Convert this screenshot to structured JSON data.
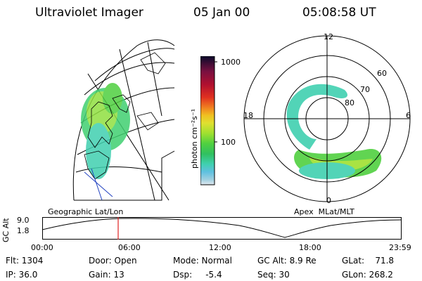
{
  "header": {
    "title": "Ultraviolet Imager",
    "date": "05 Jan 00",
    "time": "05:08:58 UT"
  },
  "colorbar": {
    "unit_label": "photon cm⁻²s⁻¹",
    "tick_top": "1000",
    "tick_mid": "100",
    "colors": [
      "#0a0a2a",
      "#7a1040",
      "#b01030",
      "#e03020",
      "#f08020",
      "#f0c020",
      "#e0e030",
      "#a0e030",
      "#50d040",
      "#30c060",
      "#40d0b0",
      "#60c0e0",
      "#a0d0e0",
      "#e0e8f0"
    ]
  },
  "left_panel": {
    "caption": "Geographic Lat/Lon"
  },
  "right_panel": {
    "caption": "Apex  MLat/MLT",
    "mlt_labels": {
      "top": "12",
      "bottom": "0",
      "left": "18",
      "right": "6"
    },
    "lat_labels": [
      "60",
      "70",
      "80"
    ]
  },
  "altitude_plot": {
    "y_label": "GC Alt",
    "y_ticks": [
      "9.0",
      "1.8"
    ],
    "x_ticks": [
      "00:00",
      "06:00",
      "12:00",
      "18:00",
      "23:59"
    ],
    "cursor_color": "#e02020"
  },
  "info": {
    "flt": "Flt: 1304",
    "ip": "IP: 36.0",
    "door": "Door: Open",
    "gain": "Gain: 13",
    "mode": "Mode: Normal",
    "dsp": "Dsp:     -5.4",
    "gc_alt": "GC Alt: 8.9 Re",
    "seq": "Seq: 30",
    "glat": "GLat:    71.8",
    "glon": "GLon: 268.2"
  }
}
